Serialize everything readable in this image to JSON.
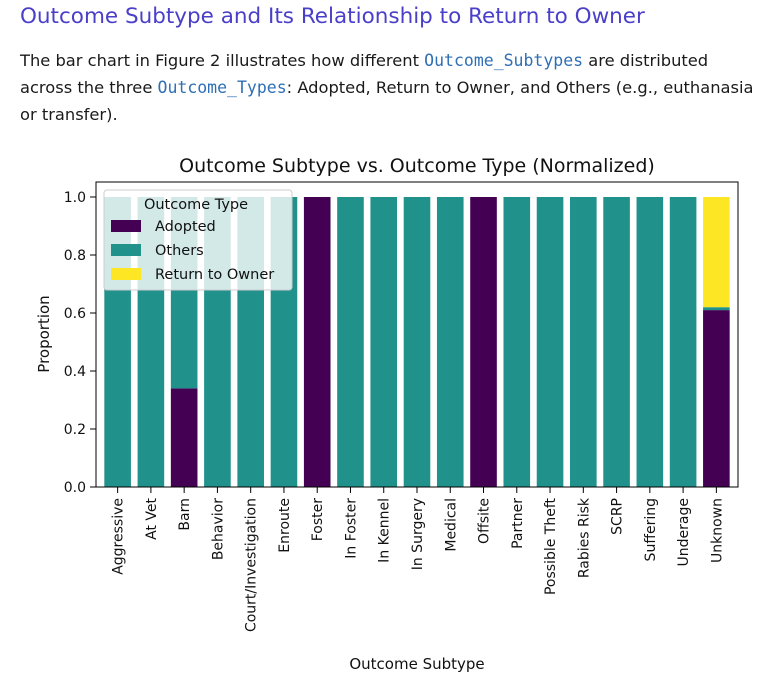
{
  "heading": "Outcome Subtype and Its Relationship to Return to Owner",
  "paragraph": {
    "t1": "The bar chart in Figure 2 illustrates how different ",
    "c1": "Outcome_Subtypes",
    "t2": " are distributed across the three ",
    "c2": "Outcome_Types",
    "t3": ": Adopted, Return to Owner, and Others (e.g., euthanasia or transfer)."
  },
  "chart_data": {
    "type": "bar",
    "stacked": true,
    "title": "Outcome Subtype vs. Outcome Type (Normalized)",
    "xlabel": "Outcome Subtype",
    "ylabel": "Proportion",
    "ylim": [
      0,
      1.04
    ],
    "yticks": [
      "0.0",
      "0.2",
      "0.4",
      "0.6",
      "0.8",
      "1.0"
    ],
    "grid": false,
    "legend": {
      "title": "Outcome Type",
      "placement": "top-left",
      "entries": [
        "Adopted",
        "Others",
        "Return to Owner"
      ]
    },
    "colors": {
      "Adopted": "#440154",
      "Others": "#21918c",
      "Return to Owner": "#fde725"
    },
    "categories": [
      "Aggressive",
      "At Vet",
      "Barn",
      "Behavior",
      "Court/Investigation",
      "Enroute",
      "Foster",
      "In Foster",
      "In Kennel",
      "In Surgery",
      "Medical",
      "Offsite",
      "Partner",
      "Possible Theft",
      "Rabies Risk",
      "SCRP",
      "Suffering",
      "Underage",
      "Unknown"
    ],
    "series": [
      {
        "name": "Adopted",
        "values": [
          0,
          0,
          0.34,
          0,
          0,
          0,
          1,
          0,
          0,
          0,
          0,
          1,
          0,
          0,
          0,
          0,
          0,
          0,
          0.61
        ]
      },
      {
        "name": "Others",
        "values": [
          1,
          1,
          0.66,
          1,
          1,
          1,
          0,
          1,
          1,
          1,
          1,
          0,
          1,
          1,
          1,
          1,
          1,
          1,
          0.01
        ]
      },
      {
        "name": "Return to Owner",
        "values": [
          0,
          0,
          0,
          0,
          0,
          0,
          0,
          0,
          0,
          0,
          0,
          0,
          0,
          0,
          0,
          0,
          0,
          0,
          0.38
        ]
      }
    ]
  }
}
